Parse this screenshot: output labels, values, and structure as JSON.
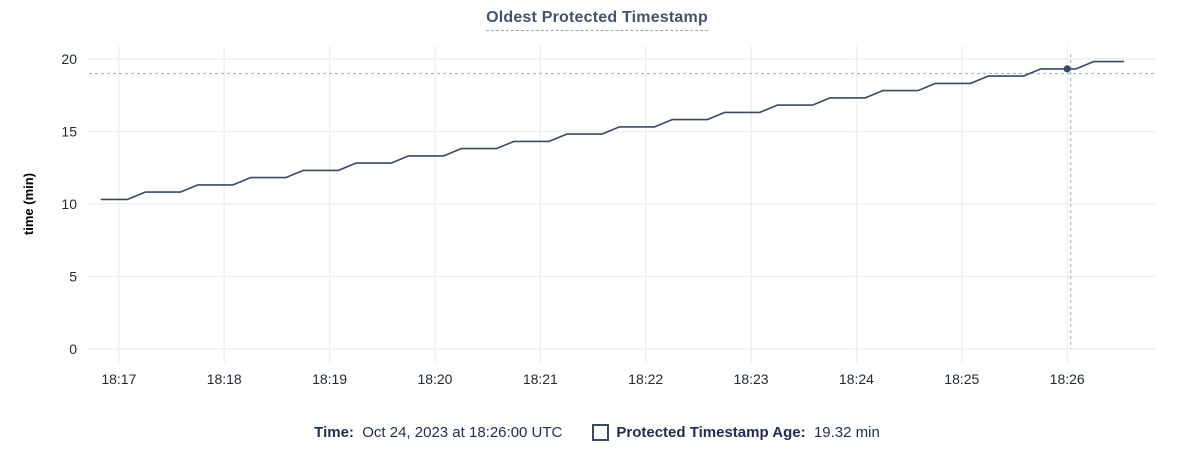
{
  "header": {
    "title": "Oldest Protected Timestamp"
  },
  "colors": {
    "line": "#3a4a64",
    "grid": "#efefef",
    "crosshair": "#a7bac9",
    "title_text": "#44536d",
    "tick_text": "#242a35",
    "axis_label_text": "#000000",
    "legend_text": "#1f2e4f",
    "background": "#ffffff"
  },
  "chart_data": {
    "type": "line",
    "title": "Oldest Protected Timestamp",
    "xlabel": "",
    "ylabel": "time (min)",
    "ylim": [
      0,
      20
    ],
    "y_ticks": [
      0,
      5,
      10,
      15,
      20
    ],
    "x_ticks": [
      "18:17",
      "18:18",
      "18:19",
      "18:20",
      "18:21",
      "18:22",
      "18:23",
      "18:24",
      "18:25",
      "18:26"
    ],
    "x_domain": [
      "18:16:43",
      "18:26:50"
    ],
    "grid": true,
    "legend_position": "bottom",
    "series": [
      {
        "name": "Protected Timestamp Age",
        "unit": "min",
        "points": [
          [
            "18:16:50",
            10.32
          ],
          [
            "18:17:05",
            10.32
          ],
          [
            "18:17:15",
            10.82
          ],
          [
            "18:17:35",
            10.82
          ],
          [
            "18:17:45",
            11.32
          ],
          [
            "18:18:05",
            11.32
          ],
          [
            "18:18:15",
            11.82
          ],
          [
            "18:18:35",
            11.82
          ],
          [
            "18:18:45",
            12.32
          ],
          [
            "18:19:05",
            12.32
          ],
          [
            "18:19:15",
            12.82
          ],
          [
            "18:19:35",
            12.82
          ],
          [
            "18:19:45",
            13.32
          ],
          [
            "18:20:05",
            13.32
          ],
          [
            "18:20:15",
            13.82
          ],
          [
            "18:20:35",
            13.82
          ],
          [
            "18:20:45",
            14.32
          ],
          [
            "18:21:05",
            14.32
          ],
          [
            "18:21:15",
            14.82
          ],
          [
            "18:21:35",
            14.82
          ],
          [
            "18:21:45",
            15.32
          ],
          [
            "18:22:05",
            15.32
          ],
          [
            "18:22:15",
            15.82
          ],
          [
            "18:22:35",
            15.82
          ],
          [
            "18:22:45",
            16.32
          ],
          [
            "18:23:05",
            16.32
          ],
          [
            "18:23:15",
            16.82
          ],
          [
            "18:23:35",
            16.82
          ],
          [
            "18:23:45",
            17.32
          ],
          [
            "18:24:05",
            17.32
          ],
          [
            "18:24:15",
            17.82
          ],
          [
            "18:24:35",
            17.82
          ],
          [
            "18:24:45",
            18.32
          ],
          [
            "18:25:05",
            18.32
          ],
          [
            "18:25:15",
            18.82
          ],
          [
            "18:25:35",
            18.82
          ],
          [
            "18:25:45",
            19.32
          ],
          [
            "18:26:05",
            19.32
          ],
          [
            "18:26:15",
            19.82
          ],
          [
            "18:26:32",
            19.82
          ]
        ]
      }
    ],
    "hover_point": {
      "time": "18:26:00",
      "value": 19.32
    },
    "crosshair": {
      "x_time": "18:26:02",
      "y_value": 19.0
    }
  },
  "legend": {
    "time_label": "Time:",
    "time_value": "Oct 24, 2023 at 18:26:00 UTC",
    "series_label": "Protected Timestamp Age:",
    "series_value": "19.32 min"
  }
}
